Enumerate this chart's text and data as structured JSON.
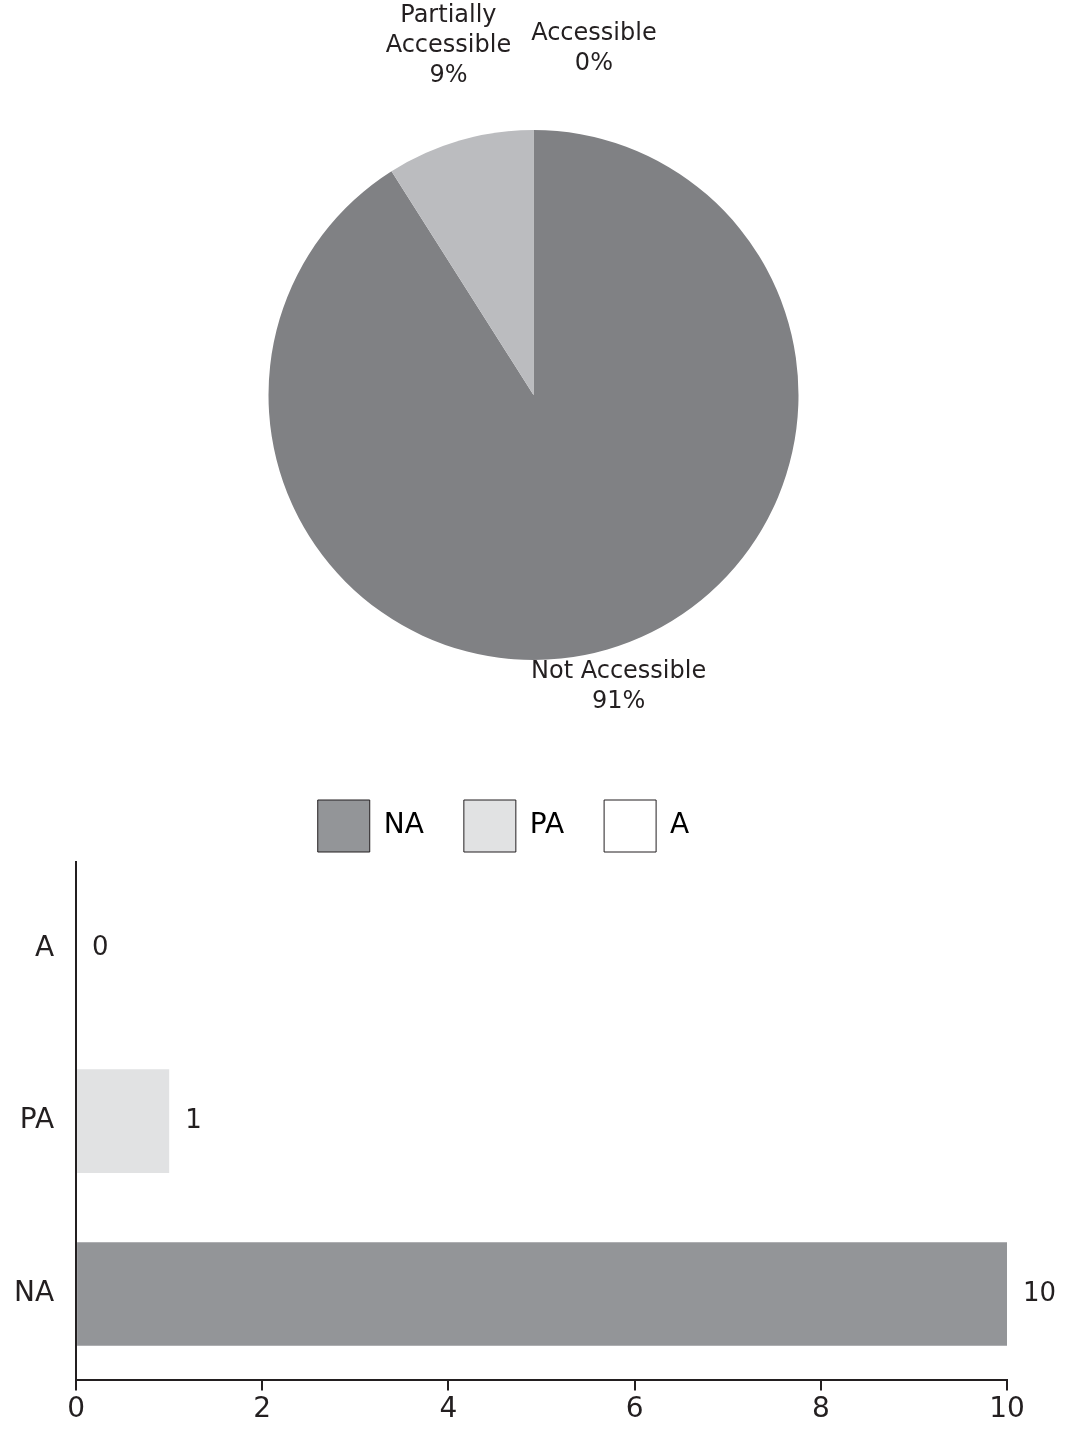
{
  "chart_data": [
    {
      "type": "pie",
      "categories": [
        "Not Accessible",
        "Partially Accessible",
        "Accessible"
      ],
      "values": [
        91,
        9,
        0
      ],
      "colors": [
        "#808184",
        "#bbbcbf",
        "#ffffff"
      ],
      "value_labels": [
        "91%",
        "9%",
        "0%"
      ],
      "legend": false
    },
    {
      "type": "bar",
      "orientation": "horizontal",
      "categories": [
        "A",
        "PA",
        "NA"
      ],
      "series": [
        {
          "name": "NA",
          "color": "#939598",
          "values": [
            null,
            null,
            10
          ]
        },
        {
          "name": "PA",
          "color": "#e1e2e3",
          "values": [
            null,
            1,
            null
          ]
        },
        {
          "name": "A",
          "color": "#ffffff",
          "values": [
            0,
            null,
            null
          ]
        }
      ],
      "xlim": [
        0,
        10
      ],
      "xticks": [
        0,
        2,
        4,
        6,
        8,
        10
      ],
      "grid": false,
      "legend": "top",
      "data_labels": true
    }
  ]
}
